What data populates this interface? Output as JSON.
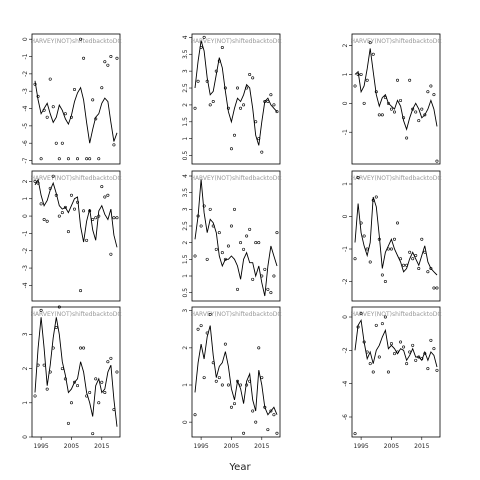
{
  "figure": {
    "xlabel": "Year"
  },
  "chart_data": [
    {
      "type": "scatter",
      "title": "HARVEY(NOT)shiftedbacktoDC",
      "xlim": [
        1992,
        2021
      ],
      "ylim": [
        -7.2,
        0.3
      ],
      "yticks": [
        0,
        -1,
        -2,
        -3,
        -4,
        -5,
        -6,
        -7
      ],
      "xticks": [],
      "x": [
        1993,
        1994,
        1995,
        1996,
        1997,
        1998,
        1999,
        2000,
        2001,
        2002,
        2003,
        2004,
        2005,
        2006,
        2007,
        2008,
        2009,
        2010,
        2011,
        2012,
        2013,
        2014,
        2015,
        2016,
        2017,
        2018,
        2019,
        2020
      ],
      "points": [
        -2.6,
        -3.3,
        -6.9,
        -4.1,
        -4.5,
        -2.3,
        -3.9,
        -6.0,
        -6.9,
        -6.0,
        -4.3,
        -6.9,
        -4.5,
        -2.9,
        -6.9,
        0.0,
        -1.1,
        -6.9,
        -6.9,
        -3.5,
        -4.6,
        -6.9,
        -2.8,
        -1.3,
        -1.5,
        -1.0,
        -6.1,
        -1.1
      ],
      "trend": [
        -2.4,
        -3.5,
        -4.3,
        -4.0,
        -3.7,
        -4.3,
        -4.8,
        -4.5,
        -3.8,
        -4.1,
        -4.6,
        -4.9,
        -4.4,
        -3.6,
        -3.1,
        -2.8,
        -3.5,
        -4.8,
        -6.0,
        -5.2,
        -4.5,
        -4.3,
        -3.7,
        -3.4,
        -3.6,
        -4.8,
        -5.9,
        -5.4
      ]
    },
    {
      "type": "scatter",
      "title": "HARVEY(NOT)shiftedbacktoDC",
      "xlim": [
        1992,
        2021
      ],
      "ylim": [
        0.25,
        4.1
      ],
      "yticks": [
        4.0,
        3.5,
        3.0,
        2.5,
        2.0,
        1.5,
        1.0,
        0.5
      ],
      "xticks": [],
      "x": [
        1993,
        1994,
        1995,
        1996,
        1997,
        1998,
        1999,
        2000,
        2001,
        2002,
        2003,
        2004,
        2005,
        2006,
        2007,
        2008,
        2009,
        2010,
        2011,
        2012,
        2013,
        2014,
        2015,
        2016,
        2017,
        2018,
        2019,
        2020
      ],
      "points": [
        1.9,
        2.7,
        3.7,
        4.0,
        2.7,
        2.0,
        2.1,
        3.0,
        3.3,
        3.7,
        2.5,
        1.9,
        0.7,
        1.1,
        2.5,
        1.9,
        2.0,
        2.5,
        2.9,
        2.8,
        1.5,
        1.0,
        0.6,
        2.1,
        2.1,
        2.3,
        2.0,
        1.8
      ],
      "trend": [
        2.5,
        3.3,
        3.9,
        3.6,
        2.8,
        2.3,
        2.4,
        2.9,
        3.4,
        3.1,
        2.4,
        1.8,
        1.5,
        1.9,
        2.2,
        2.1,
        2.3,
        2.6,
        2.5,
        1.9,
        1.1,
        0.8,
        1.5,
        2.1,
        2.2,
        2.0,
        1.9,
        1.8
      ]
    },
    {
      "type": "scatter",
      "title": "HARVEY(NOT)shiftedbacktoDC",
      "xlim": [
        1992,
        2021
      ],
      "ylim": [
        -2.1,
        2.4
      ],
      "yticks": [
        2,
        1,
        0,
        -1
      ],
      "xticks": [],
      "x": [
        1993,
        1994,
        1995,
        1996,
        1997,
        1998,
        1999,
        2000,
        2001,
        2002,
        2003,
        2004,
        2005,
        2006,
        2007,
        2008,
        2009,
        2010,
        2011,
        2012,
        2013,
        2014,
        2015,
        2016,
        2017,
        2018,
        2019,
        2020
      ],
      "points": [
        0.6,
        1.0,
        1.0,
        0.0,
        0.8,
        2.1,
        1.7,
        0.4,
        -0.4,
        -0.4,
        0.2,
        0.0,
        -0.2,
        -0.3,
        0.8,
        0.1,
        -0.5,
        -1.2,
        0.8,
        -0.2,
        -0.3,
        -0.6,
        -0.2,
        -0.4,
        0.4,
        0.6,
        0.3,
        -2.0
      ],
      "trend": [
        1.0,
        1.1,
        0.4,
        0.6,
        1.2,
        1.9,
        1.1,
        0.3,
        -0.1,
        0.2,
        0.3,
        0.0,
        -0.1,
        -0.2,
        0.1,
        -0.1,
        -0.6,
        -0.9,
        -0.5,
        -0.2,
        0.0,
        -0.2,
        -0.5,
        -0.4,
        -0.2,
        0.1,
        -0.2,
        -0.8
      ]
    },
    {
      "type": "scatter",
      "title": "HARVEY(NOT)shiftedbacktoDC",
      "xlim": [
        1992,
        2021
      ],
      "ylim": [
        -4.9,
        2.6
      ],
      "yticks": [
        2,
        1,
        0,
        -1,
        -2,
        -3,
        -4
      ],
      "xticks": [],
      "x": [
        1993,
        1994,
        1995,
        1996,
        1997,
        1998,
        1999,
        2000,
        2001,
        2002,
        2003,
        2004,
        2005,
        2006,
        2007,
        2008,
        2009,
        2010,
        2011,
        2012,
        2013,
        2014,
        2015,
        2016,
        2017,
        2018,
        2019,
        2020
      ],
      "points": [
        2.0,
        1.9,
        0.7,
        -0.2,
        -0.3,
        1.6,
        2.3,
        1.2,
        0.0,
        0.2,
        0.5,
        -0.9,
        1.2,
        0.4,
        0.8,
        -4.3,
        0.3,
        -1.4,
        0.3,
        -0.2,
        -0.1,
        0.0,
        1.7,
        1.1,
        1.2,
        -2.2,
        -0.1,
        -0.1
      ],
      "trend": [
        1.8,
        2.1,
        1.2,
        0.6,
        0.9,
        1.5,
        1.9,
        1.3,
        0.6,
        0.4,
        0.5,
        0.2,
        0.6,
        1.0,
        1.1,
        -0.6,
        -1.5,
        -0.3,
        0.4,
        -0.8,
        -1.4,
        0.3,
        0.6,
        0.1,
        -0.2,
        0.4,
        -1.1,
        -1.8
      ]
    },
    {
      "type": "scatter",
      "title": "HARVEY(NOT)shiftedbacktoDC",
      "xlim": [
        1992,
        2021
      ],
      "ylim": [
        0.25,
        4.15
      ],
      "yticks": [
        4.0,
        3.5,
        3.0,
        2.5,
        2.0,
        1.5,
        1.0,
        0.5
      ],
      "xticks": [],
      "x": [
        1993,
        1994,
        1995,
        1996,
        1997,
        1998,
        1999,
        2000,
        2001,
        2002,
        2003,
        2004,
        2005,
        2006,
        2007,
        2008,
        2009,
        2010,
        2011,
        2012,
        2013,
        2014,
        2015,
        2016,
        2017,
        2018,
        2019,
        2020
      ],
      "points": [
        1.6,
        2.8,
        2.5,
        3.1,
        1.5,
        3.0,
        2.5,
        1.8,
        2.3,
        1.7,
        1.5,
        1.9,
        2.5,
        3.0,
        0.6,
        2.0,
        1.8,
        2.2,
        2.4,
        0.9,
        2.0,
        2.0,
        1.0,
        1.2,
        0.6,
        0.5,
        1.0,
        2.3
      ],
      "trend": [
        2.1,
        2.8,
        3.9,
        2.9,
        2.3,
        2.7,
        2.6,
        2.3,
        1.6,
        1.3,
        1.5,
        1.5,
        1.6,
        1.5,
        1.3,
        0.9,
        1.5,
        1.7,
        1.4,
        1.4,
        1.0,
        1.3,
        0.8,
        0.4,
        1.3,
        1.9,
        1.6,
        1.3
      ]
    },
    {
      "type": "scatter",
      "title": "HARVEY(NOT)shiftedbacktoDC",
      "xlim": [
        1992,
        2021
      ],
      "ylim": [
        -2.6,
        1.4
      ],
      "yticks": [
        1,
        0,
        -1,
        -2
      ],
      "xticks": [],
      "x": [
        1993,
        1994,
        1995,
        1996,
        1997,
        1998,
        1999,
        2000,
        2001,
        2002,
        2003,
        2004,
        2005,
        2006,
        2007,
        2008,
        2009,
        2010,
        2011,
        2012,
        2013,
        2014,
        2015,
        2016,
        2017,
        2018,
        2019,
        2020
      ],
      "points": [
        -1.3,
        1.2,
        -0.2,
        -0.6,
        -1.0,
        -1.4,
        0.5,
        0.6,
        -0.7,
        -1.8,
        -2.0,
        -1.0,
        -1.0,
        -0.7,
        -0.2,
        -1.3,
        -1.5,
        -1.5,
        -1.1,
        -1.3,
        -1.2,
        -1.6,
        -0.7,
        -1.1,
        -1.7,
        -1.6,
        -2.2,
        -2.2
      ],
      "trend": [
        -0.8,
        0.4,
        -0.5,
        -0.9,
        -1.2,
        -0.8,
        0.6,
        0.3,
        -0.6,
        -1.6,
        -1.1,
        -0.9,
        -0.7,
        -1.0,
        -1.2,
        -1.4,
        -1.7,
        -1.6,
        -1.3,
        -1.1,
        -1.3,
        -1.5,
        -1.2,
        -0.9,
        -1.4,
        -1.6,
        -1.7,
        -1.8
      ]
    },
    {
      "type": "scatter",
      "title": "HARVEY(NOT)shiftedbacktoDC",
      "xlim": [
        1992,
        2021
      ],
      "ylim": [
        0,
        3.8
      ],
      "yticks": [
        3,
        2,
        1,
        0
      ],
      "xticks": [
        1995,
        2005,
        2015
      ],
      "x": [
        1993,
        1994,
        1995,
        1996,
        1997,
        1998,
        1999,
        2000,
        2001,
        2002,
        2003,
        2004,
        2005,
        2006,
        2007,
        2008,
        2009,
        2010,
        2011,
        2012,
        2013,
        2014,
        2015,
        2016,
        2017,
        2018,
        2019,
        2020
      ],
      "points": [
        1.2,
        2.1,
        3.7,
        2.1,
        1.4,
        1.9,
        2.6,
        3.2,
        3.8,
        2.0,
        1.7,
        0.4,
        1.0,
        1.6,
        1.5,
        2.6,
        2.6,
        1.2,
        1.3,
        0.1,
        1.7,
        1.0,
        1.6,
        1.3,
        2.2,
        2.3,
        0.8,
        1.9
      ],
      "trend": [
        1.3,
        2.6,
        3.5,
        2.6,
        1.5,
        2.1,
        2.9,
        3.5,
        3.0,
        2.2,
        1.8,
        1.3,
        1.4,
        1.6,
        1.7,
        2.2,
        1.9,
        1.3,
        1.0,
        0.6,
        1.5,
        1.7,
        1.3,
        1.4,
        1.9,
        2.1,
        1.1,
        0.3
      ]
    },
    {
      "type": "scatter",
      "title": "HARVEY(NOT)shiftedbacktoDC",
      "xlim": [
        1992,
        2021
      ],
      "ylim": [
        -0.4,
        3.1
      ],
      "yticks": [
        3,
        2,
        1,
        0
      ],
      "xticks": [
        1995,
        2005,
        2015
      ],
      "x": [
        1993,
        1994,
        1995,
        1996,
        1997,
        1998,
        1999,
        2000,
        2001,
        2002,
        2003,
        2004,
        2005,
        2006,
        2007,
        2008,
        2009,
        2010,
        2011,
        2012,
        2013,
        2014,
        2015,
        2016,
        2017,
        2018,
        2019,
        2020
      ],
      "points": [
        0.2,
        2.5,
        2.6,
        1.2,
        2.4,
        2.9,
        1.6,
        1.1,
        1.2,
        1.0,
        2.1,
        1.0,
        0.4,
        0.5,
        1.1,
        1.0,
        -0.3,
        1.0,
        1.1,
        0.3,
        0.0,
        2.0,
        1.2,
        0.4,
        -0.2,
        0.3,
        0.2,
        -0.3
      ],
      "trend": [
        0.8,
        1.6,
        2.1,
        1.7,
        2.3,
        2.6,
        1.8,
        1.2,
        1.5,
        1.6,
        1.9,
        1.5,
        0.9,
        0.6,
        1.1,
        0.9,
        0.5,
        1.1,
        1.3,
        0.6,
        0.3,
        1.4,
        1.0,
        0.4,
        0.2,
        0.3,
        0.4,
        0.2
      ]
    },
    {
      "type": "scatter",
      "title": "HARVEY(NOT)shiftedbacktoDC",
      "xlim": [
        1992,
        2021
      ],
      "ylim": [
        -7.2,
        0.6
      ],
      "yticks": [
        0,
        -2,
        -4,
        -6
      ],
      "xticks": [
        1995,
        2005,
        2015
      ],
      "x": [
        1993,
        1994,
        1995,
        1996,
        1997,
        1998,
        1999,
        2000,
        2001,
        2002,
        2003,
        2004,
        2005,
        2006,
        2007,
        2008,
        2009,
        2010,
        2011,
        2012,
        2013,
        2014,
        2015,
        2016,
        2017,
        2018,
        2019,
        2020
      ],
      "points": [
        -7.0,
        -0.6,
        0.2,
        -1.5,
        -2.1,
        -2.8,
        -3.3,
        -0.5,
        -2.4,
        -0.4,
        0.0,
        -3.3,
        -1.6,
        -2.2,
        -2.1,
        -1.5,
        -1.8,
        -2.8,
        -2.1,
        -1.7,
        -2.6,
        -2.4,
        -2.5,
        -2.2,
        -3.1,
        -1.4,
        -1.9,
        -3.2
      ],
      "trend": [
        -2.0,
        -0.5,
        -0.2,
        -1.5,
        -2.5,
        -2.1,
        -2.8,
        -2.0,
        -1.7,
        -1.2,
        -0.8,
        -1.9,
        -1.7,
        -1.9,
        -2.2,
        -1.9,
        -2.0,
        -2.6,
        -2.3,
        -1.9,
        -2.4,
        -2.4,
        -2.6,
        -2.1,
        -2.6,
        -2.1,
        -2.3,
        -3.0
      ]
    }
  ]
}
